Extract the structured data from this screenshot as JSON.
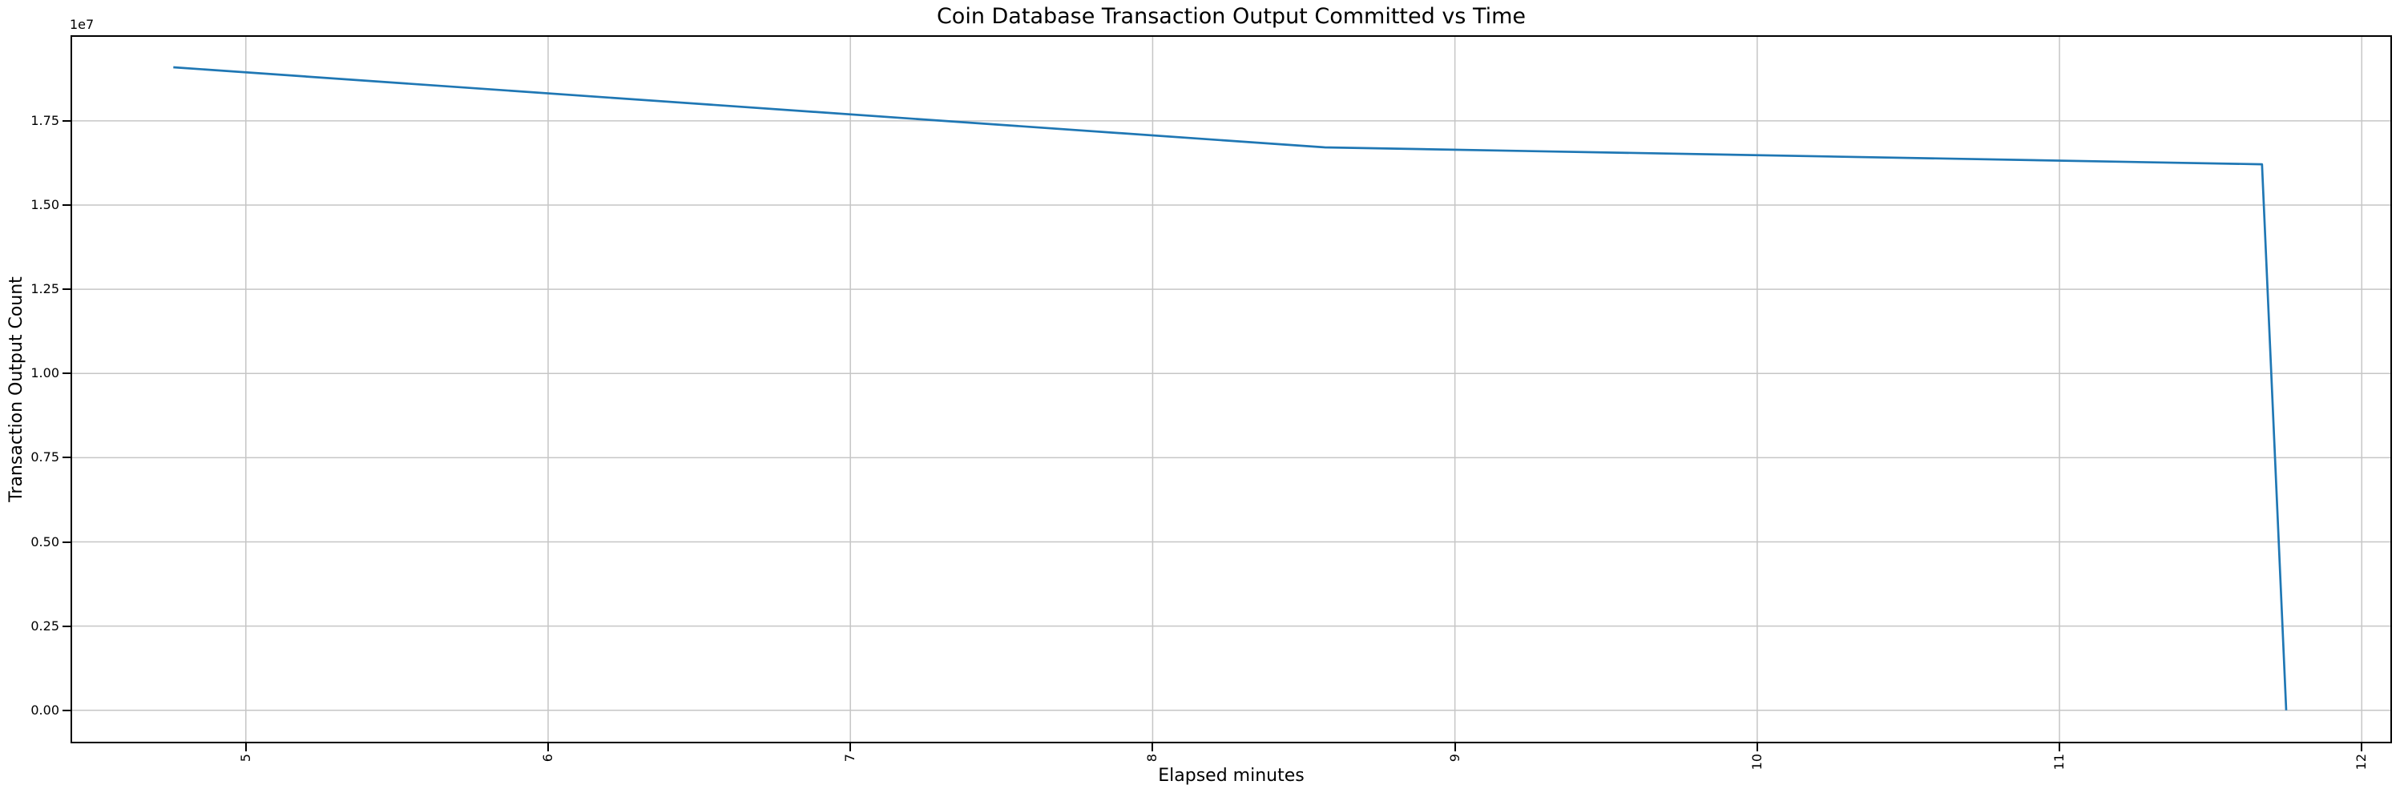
{
  "figure": {
    "title": "Coin Database Transaction Output Committed vs Time",
    "xlabel": "Elapsed minutes",
    "ylabel": "Transaction Output Count",
    "y_offset_label": "1e7"
  },
  "chart_data": {
    "type": "line",
    "title": "Coin Database Transaction Output Committed vs Time",
    "xlabel": "Elapsed minutes",
    "ylabel": "Transaction Output Count",
    "y_scale_factor_label": "1e7",
    "x": [
      4.76,
      8.57,
      11.67,
      11.75
    ],
    "y": [
      19090000,
      16710000,
      16210000,
      0
    ],
    "xlim": [
      4.42,
      12.1
    ],
    "ylim": [
      -980000,
      20040000
    ],
    "x_ticks": [
      5,
      6,
      7,
      8,
      9,
      10,
      11,
      12
    ],
    "x_tick_labels": [
      "5",
      "6",
      "7",
      "8",
      "9",
      "10",
      "11",
      "12"
    ],
    "x_tick_rotation": 90,
    "y_ticks": [
      0,
      2500000,
      5000000,
      7500000,
      10000000,
      12500000,
      15000000,
      17500000
    ],
    "y_tick_labels": [
      "0.00",
      "0.25",
      "0.50",
      "0.75",
      "1.00",
      "1.25",
      "1.50",
      "1.75"
    ],
    "grid": true,
    "legend": null,
    "line_color": "#1f77b4",
    "grid_color": "#c6c6c6",
    "spine_color": "#000000",
    "background": "#ffffff"
  }
}
